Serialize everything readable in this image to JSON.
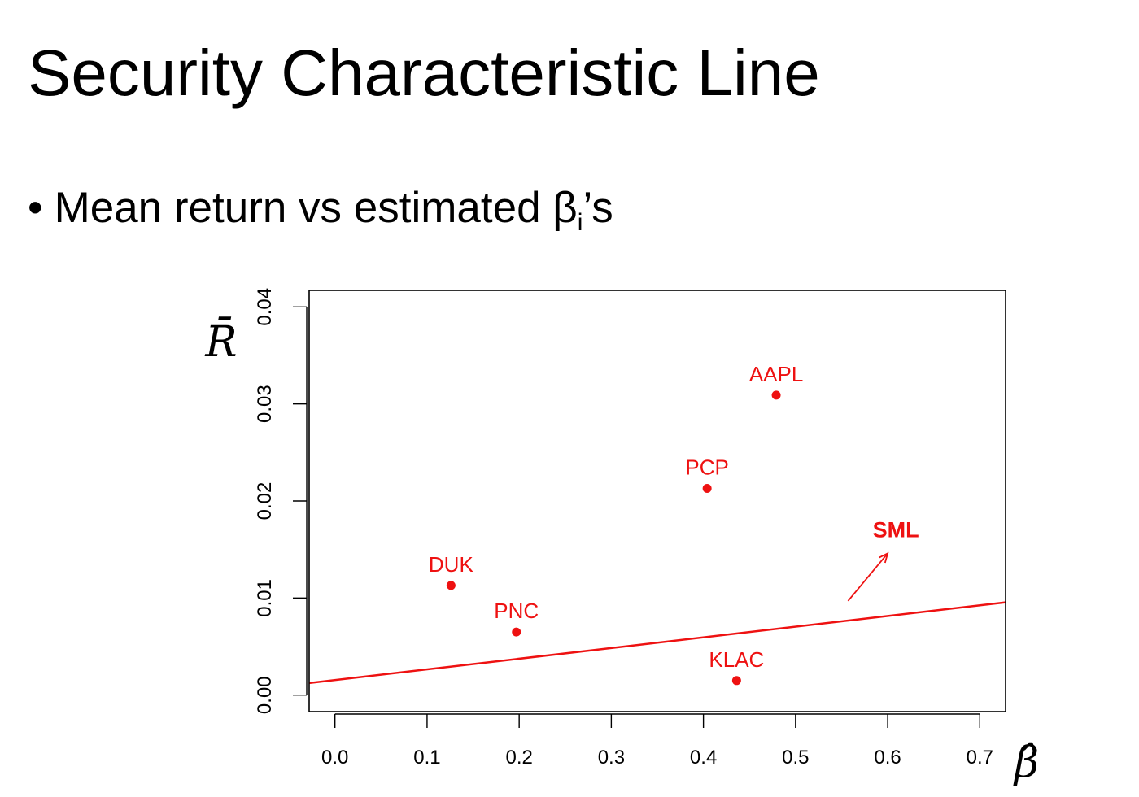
{
  "slide": {
    "title": "Security Characteristic Line",
    "bullet_main": "Mean return vs estimated β",
    "bullet_sub": "i",
    "bullet_tail": "’s"
  },
  "chart_data": {
    "type": "scatter",
    "title": "",
    "xlabel": "β̂",
    "ylabel": "R̄",
    "xlim": [
      -0.028,
      0.728
    ],
    "ylim": [
      -0.0017,
      0.0417
    ],
    "xticks": [
      0.0,
      0.1,
      0.2,
      0.3,
      0.4,
      0.5,
      0.6,
      0.7
    ],
    "xtick_labels": [
      "0.0",
      "0.1",
      "0.2",
      "0.3",
      "0.4",
      "0.5",
      "0.6",
      "0.7"
    ],
    "yticks": [
      0.0,
      0.01,
      0.02,
      0.03,
      0.04
    ],
    "ytick_labels": [
      "0.00",
      "0.01",
      "0.02",
      "0.03",
      "0.04"
    ],
    "grid": false,
    "points": [
      {
        "label": "DUK",
        "x": 0.126,
        "y": 0.0113
      },
      {
        "label": "PNC",
        "x": 0.197,
        "y": 0.0065
      },
      {
        "label": "PCP",
        "x": 0.404,
        "y": 0.0213
      },
      {
        "label": "AAPL",
        "x": 0.479,
        "y": 0.0309
      },
      {
        "label": "KLAC",
        "x": 0.436,
        "y": 0.0015
      }
    ],
    "line": {
      "label": "SML",
      "intercept": 0.00155,
      "slope": 0.011
    },
    "annotation": {
      "text": "SML",
      "arrow_from": [
        0.557,
        0.0097
      ],
      "arrow_to": [
        0.6,
        0.0146
      ]
    },
    "colors": {
      "points": "#ee1111",
      "line": "#ee1111",
      "annotation": "#ee1111",
      "axes": "#000000"
    }
  }
}
